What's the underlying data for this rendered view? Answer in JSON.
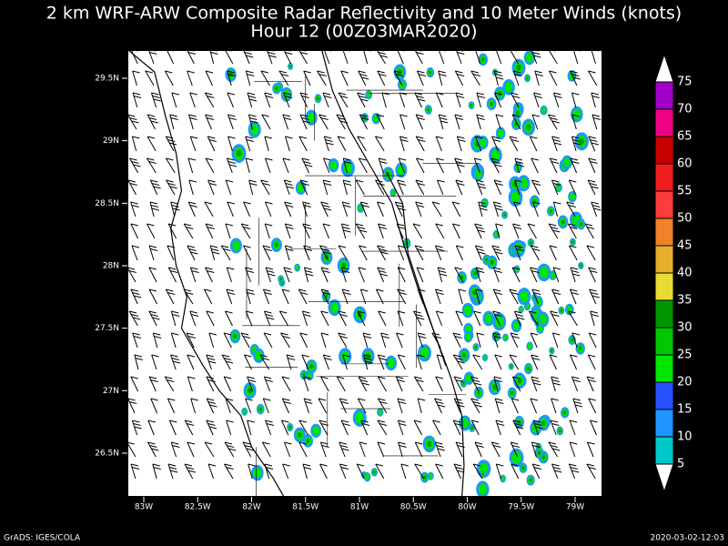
{
  "title": "2 km WRF-ARW Composite Radar Reflectivity and 10 Meter Winds (knots)",
  "subtitle": "Hour 12 (00Z03MAR2020)",
  "map": {
    "lat_ticks": [
      {
        "value": 29.5,
        "label": "29.5N"
      },
      {
        "value": 29,
        "label": "29N"
      },
      {
        "value": 28.5,
        "label": "28.5N"
      },
      {
        "value": 28,
        "label": "28N"
      },
      {
        "value": 27.5,
        "label": "27.5N"
      },
      {
        "value": 27,
        "label": "27N"
      },
      {
        "value": 26.5,
        "label": "26.5N"
      }
    ],
    "lon_ticks": [
      {
        "value": -83,
        "label": "83W"
      },
      {
        "value": -82.5,
        "label": "82.5W"
      },
      {
        "value": -82,
        "label": "82W"
      },
      {
        "value": -81.5,
        "label": "81.5W"
      },
      {
        "value": -81,
        "label": "81W"
      },
      {
        "value": -80.5,
        "label": "80.5W"
      },
      {
        "value": -80,
        "label": "80W"
      },
      {
        "value": -79.5,
        "label": "79.5W"
      },
      {
        "value": -79,
        "label": "79W"
      }
    ]
  },
  "colorbar": {
    "levels": [
      5,
      10,
      15,
      20,
      25,
      30,
      35,
      40,
      45,
      50,
      55,
      60,
      65,
      70,
      75
    ],
    "colors": [
      "#00c8c8",
      "#1e96ff",
      "#2850ff",
      "#00e600",
      "#00c800",
      "#009600",
      "#e6dc32",
      "#e6af2d",
      "#f08228",
      "#fa3c3c",
      "#f01e1e",
      "#c80000",
      "#f00082",
      "#a000c8"
    ]
  },
  "footer": {
    "left": "GrADS: IGES/COLA",
    "right": "2020-03-02-12:03"
  }
}
